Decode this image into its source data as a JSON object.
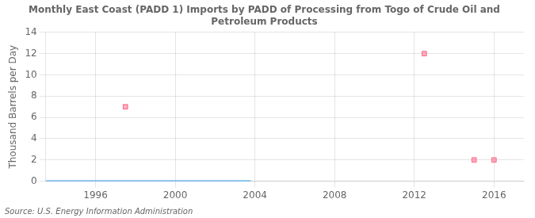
{
  "chart_data": {
    "type": "scatter",
    "title": "Monthly East Coast (PADD 1) Imports by PADD of Processing from Togo of Crude Oil and\nPetroleum Products",
    "ylabel": "Thousand Barrels per Day",
    "source": "Source: U.S. Energy Information Administration",
    "xlim": [
      1993.5,
      2017.5
    ],
    "xticks": [
      1996,
      2000,
      2004,
      2008,
      2012,
      2016
    ],
    "ylim": [
      0,
      14
    ],
    "yticks": [
      0,
      2,
      4,
      6,
      8,
      10,
      12,
      14
    ],
    "grid": true,
    "series": [
      {
        "type": "line",
        "line_style": "solid",
        "x": [
          1993.5,
          2003.8
        ],
        "values": [
          0,
          0
        ]
      },
      {
        "type": "scatter",
        "marker": "square",
        "x": [
          1997.5,
          2012.5,
          2015.0,
          2016.0
        ],
        "values": [
          7,
          12,
          2,
          2
        ]
      }
    ]
  }
}
